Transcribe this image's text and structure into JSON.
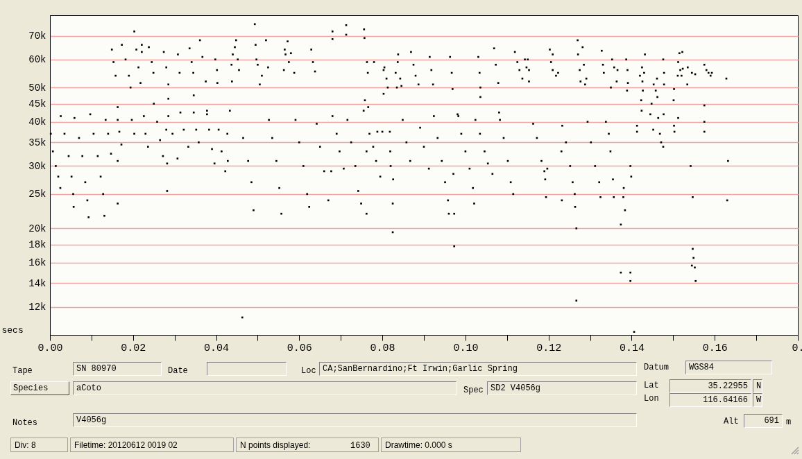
{
  "chart_data": {
    "type": "scatter",
    "xlabel": "secs",
    "log": "y",
    "grid": "y",
    "marker": "square",
    "xlim": [
      0,
      0.18
    ],
    "ylim": [
      10000,
      80000
    ],
    "xticks": [
      {
        "value": 0,
        "label": "0.00"
      },
      {
        "value": 0.01,
        "label": null
      },
      {
        "value": 0.02,
        "label": "0.02"
      },
      {
        "value": 0.03,
        "label": null
      },
      {
        "value": 0.04,
        "label": "0.04"
      },
      {
        "value": 0.05,
        "label": null
      },
      {
        "value": 0.06,
        "label": "0.06"
      },
      {
        "value": 0.07,
        "label": null
      },
      {
        "value": 0.08,
        "label": "0.08"
      },
      {
        "value": 0.09,
        "label": null
      },
      {
        "value": 0.1,
        "label": "0.10"
      },
      {
        "value": 0.11,
        "label": null
      },
      {
        "value": 0.12,
        "label": "0.12"
      },
      {
        "value": 0.13,
        "label": null
      },
      {
        "value": 0.14,
        "label": "0.14"
      },
      {
        "value": 0.15,
        "label": null
      },
      {
        "value": 0.16,
        "label": "0.16"
      },
      {
        "value": 0.17,
        "label": null
      },
      {
        "value": 0.18,
        "label": "0."
      }
    ],
    "yticks": [
      {
        "value": 12000,
        "label": "12k"
      },
      {
        "value": 14000,
        "label": "14k"
      },
      {
        "value": 16000,
        "label": "16k"
      },
      {
        "value": 18000,
        "label": "18k"
      },
      {
        "value": 20000,
        "label": "20k"
      },
      {
        "value": 25000,
        "label": "25k"
      },
      {
        "value": 30000,
        "label": "30k"
      },
      {
        "value": 35000,
        "label": "35k"
      },
      {
        "value": 40000,
        "label": "40k"
      },
      {
        "value": 45000,
        "label": "45k"
      },
      {
        "value": 50000,
        "label": "50k"
      },
      {
        "value": 60000,
        "label": "60k"
      },
      {
        "value": 70000,
        "label": "70k"
      }
    ],
    "series": [
      {
        "color": "#000000",
        "x": [
          0.0002,
          0.0007,
          0.0014,
          0.002,
          0.0025,
          0.0026,
          0.0035,
          0.0045,
          0.0052,
          0.0056,
          0.0057,
          0.0059,
          0.007,
          0.0078,
          0.0085,
          0.009,
          0.0093,
          0.0097,
          0.0105,
          0.0115,
          0.0122,
          0.0128,
          0.0131,
          0.0134,
          0.014,
          0.0147,
          0.0163,
          0.0167,
          0.0172,
          0.0163,
          0.0163,
          0.0163,
          0.0197,
          0.0203,
          0.0226,
          0.023,
          0.0236,
          0.025,
          0.0258,
          0.0265,
          0.0272,
          0.0285,
          0.0295,
          0.0307,
          0.028,
          0.0282,
          0.0282,
          0.0285,
          0.0285,
          0.0314,
          0.0322,
          0.0333,
          0.0346,
          0.0352,
          0.0358,
          0.0346,
          0.0378,
          0.0378,
          0.0383,
          0.039,
          0.0396,
          0.0406,
          0.0413,
          0.0422,
          0.0428,
          0.0427,
          0.0433,
          0.0465,
          0.0477,
          0.0485,
          0.049,
          0.0463
        ],
        "values": [
          37000,
          33000,
          30000,
          28000,
          26000,
          41500,
          37000,
          32000,
          28000,
          25000,
          23000,
          41000,
          36000,
          32000,
          27000,
          24000,
          21500,
          42000,
          37000,
          32000,
          28000,
          25000,
          21700,
          40500,
          37000,
          32500,
          40500,
          37500,
          34500,
          44000,
          31000,
          23500,
          40500,
          37000,
          41500,
          37000,
          34000,
          45000,
          40000,
          35500,
          32000,
          41500,
          37000,
          31500,
          38000,
          30500,
          25500,
          46500,
          51000,
          42500,
          38000,
          34000,
          42500,
          38000,
          35000,
          47500,
          43000,
          42000,
          38000,
          33500,
          30500,
          38000,
          33000,
          29000,
          31000,
          37000,
          43000,
          36000,
          31000,
          27000,
          22500,
          11200
        ]
      },
      {
        "color": "#000000",
        "x": [
          0.0149,
          0.0153,
          0.0158,
          0.0173,
          0.0182,
          0.019,
          0.0194,
          0.0203,
          0.0208,
          0.0213,
          0.0218,
          0.0221,
          0.0221,
          0.0238,
          0.0245,
          0.0249,
          0.0274,
          0.028,
          0.0308,
          0.0312,
          0.0336,
          0.0341,
          0.0345,
          0.0361,
          0.0367,
          0.0375,
          0.0398,
          0.0402,
          0.0403,
          0.0437,
          0.044,
          0.0445,
          0.0448,
          0.0452,
          0.0455,
          0.0438,
          0.0493,
          0.0495,
          0.0497,
          0.05,
          0.0505,
          0.051,
          0.052,
          0.0525
        ],
        "values": [
          64000,
          59000,
          54000,
          66000,
          60000,
          54000,
          50000,
          72000,
          64000,
          57000,
          51500,
          66000,
          63000,
          65000,
          59000,
          55000,
          63000,
          57000,
          62000,
          55000,
          64500,
          59000,
          55000,
          68000,
          61000,
          52000,
          60000,
          56000,
          51500,
          58000,
          62000,
          65000,
          68000,
          60000,
          56000,
          52000,
          75500,
          66000,
          60000,
          58000,
          51000,
          54000,
          68000,
          57000
        ]
      },
      {
        "color": "#000000",
        "x": [
          0.0527,
          0.0535,
          0.0545,
          0.0552,
          0.0557,
          0.0591,
          0.06,
          0.061,
          0.0619,
          0.0624,
          0.0642,
          0.065,
          0.066,
          0.067,
          0.0677,
          0.068,
          0.069,
          0.0697,
          0.0707,
          0.0716,
          0.0725,
          0.0735,
          0.0742,
          0.0749,
          0.0762,
          0.0769,
          0.0778,
          0.0785,
          0.0795,
          0.0762,
          0.0788,
          0.08,
          0.0818,
          0.0819,
          0.082,
          0.0826,
          0.0825,
          0.0825,
          0.0849,
          0.0858,
          0.0867,
          0.0891,
          0.09,
          0.0912,
          0.0924,
          0.0933,
          0.0943,
          0.0951,
          0.0958,
          0.096,
          0.0973,
          0.0973,
          0.0971,
          0.0981,
          0.0983,
          0.099,
          0.1,
          0.101,
          0.1018,
          0.1021,
          0.1024,
          0.1035,
          0.1046,
          0.1054,
          0.1065,
          0.1083,
          0.1092,
          0.1102,
          0.1109,
          0.1115
        ],
        "values": [
          40500,
          36000,
          31000,
          26000,
          22000,
          40500,
          35000,
          30000,
          25000,
          23000,
          39500,
          34000,
          29000,
          24000,
          29000,
          41500,
          37000,
          33000,
          29500,
          40500,
          35000,
          30000,
          25500,
          23500,
          22000,
          37000,
          34000,
          31000,
          28000,
          33000,
          37500,
          37500,
          37500,
          33000,
          30000,
          27500,
          23500,
          19500,
          40500,
          35000,
          31000,
          38500,
          34000,
          29500,
          41500,
          36000,
          31000,
          27000,
          24000,
          22000,
          22000,
          17800,
          28500,
          42000,
          41500,
          37000,
          33000,
          29500,
          26000,
          23500,
          40500,
          37000,
          33000,
          30500,
          28500,
          40500,
          36000,
          31000,
          27000,
          25000
        ]
      },
      {
        "color": "#000000",
        "x": [
          0.0572,
          0.0567,
          0.0575,
          0.058,
          0.0563,
          0.0588,
          0.0565,
          0.0629,
          0.0633,
          0.0638,
          0.068,
          0.068,
          0.0713,
          0.0713,
          0.0756,
          0.0757,
          0.0763,
          0.0765,
          0.078,
          0.0755,
          0.0758,
          0.0766,
          0.0803,
          0.081,
          0.0813,
          0.0803,
          0.0805,
          0.0832,
          0.0837,
          0.0838,
          0.0843,
          0.0835,
          0.0846,
          0.0869,
          0.0875,
          0.088,
          0.0887,
          0.0914,
          0.0918,
          0.0922,
          0.0963,
          0.0967,
          0.0969,
          0.1031,
          0.1034,
          0.1036,
          0.1036,
          0.1069,
          0.1073,
          0.1079,
          0.1081,
          0.1119,
          0.1125,
          0.113,
          0.1137,
          0.1143,
          0.1147,
          0.1153
        ],
        "values": [
          67500,
          62000,
          59000,
          62500,
          56000,
          55000,
          64000,
          64000,
          59000,
          55500,
          68500,
          72000,
          75000,
          70500,
          73000,
          69000,
          59000,
          55000,
          59000,
          43000,
          46000,
          44000,
          56000,
          53000,
          50000,
          48000,
          57000,
          55000,
          59000,
          62000,
          53000,
          50000,
          50500,
          63000,
          58000,
          54000,
          51000,
          61000,
          56000,
          51000,
          61000,
          55000,
          49500,
          61000,
          55000,
          50000,
          47000,
          64500,
          58000,
          51500,
          42500,
          63000,
          59000,
          56000,
          53000,
          60000,
          57000,
          52000
        ]
      },
      {
        "color": "#000000",
        "x": [
          0.1163,
          0.1172,
          0.1183,
          0.119,
          0.1192,
          0.1194,
          0.1197,
          0.1233,
          0.1242,
          0.1252,
          0.1258,
          0.1263,
          0.1264,
          0.1231,
          0.1232,
          0.1267,
          0.1267,
          0.1294,
          0.1302,
          0.1312,
          0.1322,
          0.1325,
          0.1338,
          0.1345,
          0.1349,
          0.1355,
          0.1357,
          0.138,
          0.1381,
          0.1384,
          0.1397,
          0.1399,
          0.1374,
          0.1374,
          0.1397,
          0.1397,
          0.1406
        ],
        "values": [
          39500,
          36000,
          31000,
          29000,
          27500,
          24500,
          29500,
          39000,
          35000,
          30000,
          27000,
          25000,
          23000,
          33000,
          24000,
          20000,
          12500,
          40000,
          35000,
          30000,
          27000,
          24500,
          40000,
          37000,
          33000,
          27500,
          24500,
          24500,
          26000,
          22500,
          30000,
          28000,
          20500,
          15000,
          15000,
          14200,
          10200
        ]
      },
      {
        "color": "#000000",
        "x": [
          0.115,
          0.1153,
          0.1203,
          0.1206,
          0.121,
          0.1218,
          0.1223,
          0.121,
          0.127,
          0.1271,
          0.1275,
          0.1277,
          0.1282,
          0.1285,
          0.1291,
          0.1288,
          0.1328,
          0.1331,
          0.1333,
          0.1353,
          0.1358,
          0.1366,
          0.1364,
          0.135,
          0.1387,
          0.139,
          0.1391,
          0.1389
        ],
        "values": [
          60000,
          56000,
          64000,
          59000,
          56000,
          54000,
          55000,
          62000,
          68000,
          62000,
          56000,
          52000,
          65000,
          58000,
          53000,
          51000,
          63500,
          58000,
          55000,
          60000,
          57000,
          56000,
          52000,
          50000,
          60000,
          56000,
          51500,
          49000
        ]
      },
      {
        "color": "#000000",
        "x": [
          0.1413,
          0.1413,
          0.1424,
          0.1423,
          0.143,
          0.1426,
          0.1427,
          0.1425,
          0.142,
          0.1432,
          0.1445,
          0.1448,
          0.1452,
          0.1453,
          0.1458,
          0.1462,
          0.1461,
          0.1464,
          0.1468,
          0.1471,
          0.1476,
          0.1477,
          0.1478,
          0.1478,
          0.1476,
          0.1502,
          0.1503,
          0.1501,
          0.1502,
          0.1512,
          0.1515,
          0.1522,
          0.1512,
          0.1511,
          0.1517,
          0.152,
          0.1523,
          0.1534,
          0.1542,
          0.1547,
          0.1547,
          0.1549,
          0.1545,
          0.1552,
          0.1554,
          0.1535,
          0.1545,
          0.1553,
          0.1575,
          0.1575,
          0.1575,
          0.1575,
          0.158,
          0.1585,
          0.159,
          0.1593,
          0.1628,
          0.1632,
          0.163
        ],
        "values": [
          39000,
          37500,
          43000,
          46000,
          55000,
          52000,
          49000,
          57000,
          54000,
          62000,
          42000,
          45000,
          38000,
          51000,
          49000,
          47000,
          53000,
          41000,
          37000,
          35000,
          34000,
          42000,
          51000,
          55000,
          60000,
          39000,
          37500,
          46000,
          49500,
          59000,
          62500,
          63000,
          41000,
          54000,
          56000,
          54000,
          56500,
          51000,
          30000,
          24500,
          17500,
          16500,
          15700,
          15500,
          14200,
          57000,
          55000,
          54500,
          58000,
          44500,
          40000,
          37500,
          56000,
          55000,
          54000,
          55000,
          53000,
          31000,
          24000
        ]
      }
    ],
    "annotations": [
      "Tape",
      "SN 80970",
      "Date",
      "Loc",
      "CA;SanBernardino;Ft Irwin;Garlic Spring",
      "Datum",
      "WGS84",
      "Species",
      "aCoto",
      "Spec",
      "SD2 V4056g",
      "Lat",
      "35.22955",
      "N",
      "Lon",
      "116.64166",
      "W",
      "Notes",
      "V4056g",
      "Alt",
      "691",
      "m",
      "Div: 8",
      "Filetime: 20120612 0019 02",
      "N points displayed:",
      "1630",
      "Drawtime: 0.000 s"
    ]
  }
}
